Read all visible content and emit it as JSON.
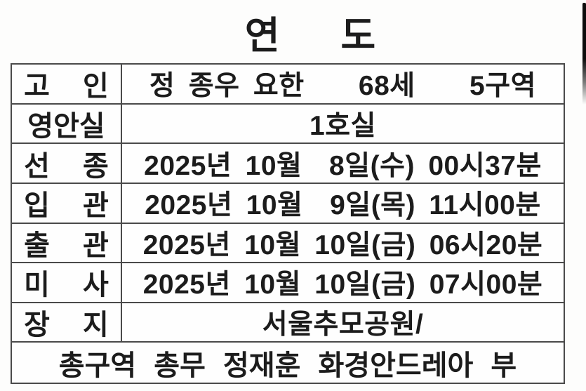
{
  "page": {
    "title": "연 도"
  },
  "table": {
    "rows": [
      {
        "label": "고 인",
        "value": "정 종우 요한    68세    5구역"
      },
      {
        "label": "영안실",
        "value": "1호실"
      },
      {
        "label": "선 종",
        "value": "2025년 10월  8일(수) 00시37분"
      },
      {
        "label": "입 관",
        "value": "2025년 10월  9일(목) 11시00분"
      },
      {
        "label": "출 관",
        "value": "2025년 10월 10일(금) 06시20분"
      },
      {
        "label": "미 사",
        "value": "2025년 10월 10일(금) 07시00분"
      },
      {
        "label": "장 지",
        "value": "서울추모공원/"
      }
    ],
    "footer": "총구역 총무 정재훈 화경안드레아 부"
  },
  "colors": {
    "text": "#1c1c1c",
    "border": "#4a4a4a",
    "background": "#fdfdfc",
    "scan_artifact": "#0d0d0d"
  }
}
